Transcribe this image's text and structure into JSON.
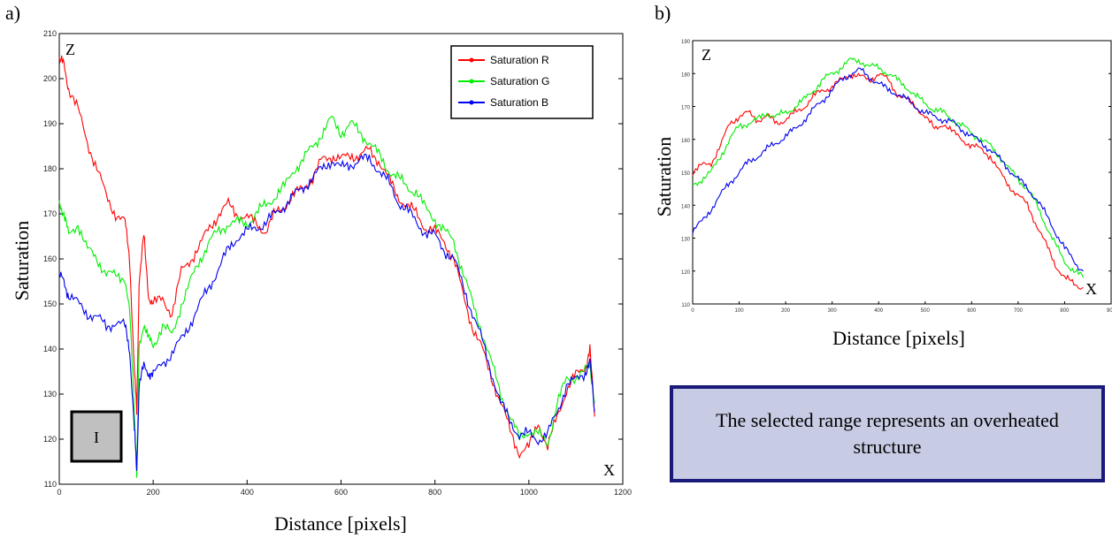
{
  "panels": {
    "a": {
      "label": "a)"
    },
    "b": {
      "label": "b)"
    }
  },
  "note": {
    "text": "The selected range represents an overheated structure"
  },
  "chart_data": [
    {
      "id": "a",
      "type": "line",
      "xlabel": "Distance [pixels]",
      "ylabel": "Saturation",
      "corner_z": "Z",
      "corner_x": "X",
      "box_label": "I",
      "xlim": [
        0,
        1200
      ],
      "ylim": [
        110,
        210
      ],
      "xticks": [
        0,
        200,
        400,
        600,
        800,
        1000,
        1200
      ],
      "yticks": [
        110,
        120,
        130,
        140,
        150,
        160,
        170,
        180,
        190,
        200,
        210
      ],
      "legend": {
        "position": "top-right"
      },
      "grid": false,
      "series": [
        {
          "name": "Saturation R",
          "color": "#ff0000",
          "x": [
            0,
            10,
            20,
            40,
            60,
            80,
            100,
            120,
            140,
            150,
            160,
            165,
            170,
            180,
            190,
            200,
            220,
            240,
            260,
            280,
            300,
            320,
            340,
            360,
            380,
            400,
            420,
            440,
            460,
            480,
            500,
            520,
            540,
            560,
            580,
            600,
            620,
            640,
            660,
            680,
            700,
            720,
            740,
            760,
            780,
            800,
            820,
            840,
            860,
            880,
            900,
            920,
            940,
            960,
            980,
            1000,
            1020,
            1040,
            1060,
            1080,
            1100,
            1120,
            1130,
            1140
          ],
          "y": [
            204,
            203,
            198,
            193,
            186,
            180,
            174,
            170,
            168,
            160,
            135,
            126,
            155,
            165,
            152,
            150,
            151,
            148,
            157,
            160,
            163,
            167,
            170,
            172,
            170,
            169,
            168,
            166,
            170,
            172,
            174,
            176,
            178,
            182,
            183,
            182,
            183,
            183,
            184,
            182,
            178,
            174,
            172,
            170,
            167,
            166,
            164,
            160,
            152,
            145,
            140,
            134,
            128,
            122,
            117,
            118,
            124,
            118,
            125,
            131,
            134,
            136,
            140,
            125
          ]
        },
        {
          "name": "Saturation G",
          "color": "#00ee00",
          "x": [
            0,
            10,
            20,
            40,
            60,
            80,
            100,
            120,
            140,
            150,
            160,
            165,
            170,
            180,
            190,
            200,
            220,
            240,
            260,
            280,
            300,
            320,
            340,
            360,
            380,
            400,
            420,
            440,
            460,
            480,
            500,
            520,
            540,
            560,
            580,
            600,
            620,
            640,
            660,
            680,
            700,
            720,
            740,
            760,
            780,
            800,
            820,
            840,
            860,
            880,
            900,
            920,
            940,
            960,
            980,
            1000,
            1020,
            1040,
            1060,
            1080,
            1100,
            1120,
            1130,
            1140
          ],
          "y": [
            173,
            170,
            165,
            168,
            162,
            160,
            157,
            156,
            156,
            148,
            126,
            112,
            140,
            146,
            142,
            141,
            145,
            143,
            150,
            155,
            160,
            164,
            166,
            168,
            168,
            168,
            170,
            172,
            174,
            176,
            180,
            182,
            185,
            188,
            191,
            188,
            190,
            188,
            186,
            183,
            180,
            178,
            176,
            175,
            171,
            169,
            166,
            164,
            157,
            150,
            144,
            137,
            130,
            125,
            120,
            122,
            121,
            119,
            128,
            133,
            134,
            135,
            137,
            128
          ]
        },
        {
          "name": "Saturation B",
          "color": "#0000ee",
          "x": [
            0,
            10,
            20,
            40,
            60,
            80,
            100,
            120,
            140,
            150,
            160,
            165,
            170,
            180,
            190,
            200,
            220,
            240,
            260,
            280,
            300,
            320,
            340,
            360,
            380,
            400,
            420,
            440,
            460,
            480,
            500,
            520,
            540,
            560,
            580,
            600,
            620,
            640,
            660,
            680,
            700,
            720,
            740,
            760,
            780,
            800,
            820,
            840,
            860,
            880,
            900,
            920,
            940,
            960,
            980,
            1000,
            1020,
            1040,
            1060,
            1080,
            1100,
            1120,
            1130,
            1140
          ],
          "y": [
            156,
            155,
            152,
            150,
            148,
            147,
            145,
            146,
            145,
            140,
            122,
            113,
            132,
            136,
            135,
            134,
            137,
            139,
            142,
            146,
            150,
            154,
            158,
            162,
            165,
            166,
            167,
            168,
            170,
            172,
            174,
            176,
            178,
            180,
            182,
            180,
            181,
            182,
            182,
            180,
            177,
            173,
            171,
            168,
            166,
            165,
            162,
            160,
            154,
            148,
            142,
            135,
            128,
            124,
            121,
            121,
            120,
            121,
            126,
            132,
            133,
            135,
            137,
            126
          ]
        }
      ]
    },
    {
      "id": "b",
      "type": "line",
      "xlabel": "Distance [pixels]",
      "ylabel": "Saturation",
      "corner_z": "Z",
      "corner_x": "X",
      "xlim": [
        0,
        900
      ],
      "ylim": [
        110,
        190
      ],
      "xticks": [
        0,
        100,
        200,
        300,
        400,
        500,
        600,
        700,
        800,
        900
      ],
      "yticks": [
        110,
        120,
        130,
        140,
        150,
        160,
        170,
        180,
        190
      ],
      "grid": false,
      "series": [
        {
          "name": "",
          "color": "#ff0000",
          "x": [
            0,
            20,
            40,
            60,
            80,
            100,
            120,
            140,
            160,
            180,
            200,
            220,
            240,
            260,
            280,
            300,
            320,
            340,
            360,
            380,
            400,
            420,
            440,
            460,
            480,
            500,
            520,
            540,
            560,
            580,
            600,
            620,
            640,
            660,
            680,
            700,
            720,
            740,
            760,
            780,
            800,
            820,
            840
          ],
          "y": [
            150,
            152,
            153,
            158,
            165,
            167,
            168,
            166,
            167,
            165,
            166,
            168,
            170,
            173,
            175,
            176,
            178,
            180,
            179,
            178,
            180,
            178,
            174,
            172,
            170,
            167,
            163,
            165,
            162,
            160,
            158,
            157,
            155,
            150,
            146,
            143,
            140,
            134,
            128,
            122,
            118,
            116,
            115
          ]
        },
        {
          "name": "",
          "color": "#00ee00",
          "x": [
            0,
            20,
            40,
            60,
            80,
            100,
            120,
            140,
            160,
            180,
            200,
            220,
            240,
            260,
            280,
            300,
            320,
            340,
            360,
            380,
            400,
            420,
            440,
            460,
            480,
            500,
            520,
            540,
            560,
            580,
            600,
            620,
            640,
            660,
            680,
            700,
            720,
            740,
            760,
            780,
            800,
            820,
            840
          ],
          "y": [
            146,
            148,
            150,
            155,
            160,
            164,
            165,
            166,
            168,
            167,
            168,
            170,
            172,
            175,
            178,
            180,
            182,
            184,
            184,
            182,
            182,
            180,
            178,
            176,
            173,
            171,
            169,
            168,
            166,
            164,
            162,
            160,
            158,
            155,
            151,
            148,
            145,
            140,
            134,
            128,
            123,
            120,
            118
          ]
        },
        {
          "name": "",
          "color": "#0000ee",
          "x": [
            0,
            20,
            40,
            60,
            80,
            100,
            120,
            140,
            160,
            180,
            200,
            220,
            240,
            260,
            280,
            300,
            320,
            340,
            360,
            380,
            400,
            420,
            440,
            460,
            480,
            500,
            520,
            540,
            560,
            580,
            600,
            620,
            640,
            660,
            680,
            700,
            720,
            740,
            760,
            780,
            800,
            820,
            840
          ],
          "y": [
            132,
            135,
            139,
            143,
            147,
            150,
            153,
            155,
            157,
            159,
            161,
            163,
            166,
            169,
            172,
            175,
            178,
            180,
            181,
            179,
            177,
            175,
            174,
            172,
            170,
            168,
            167,
            166,
            165,
            163,
            161,
            159,
            157,
            154,
            151,
            148,
            145,
            142,
            137,
            132,
            127,
            123,
            120
          ]
        }
      ]
    }
  ]
}
